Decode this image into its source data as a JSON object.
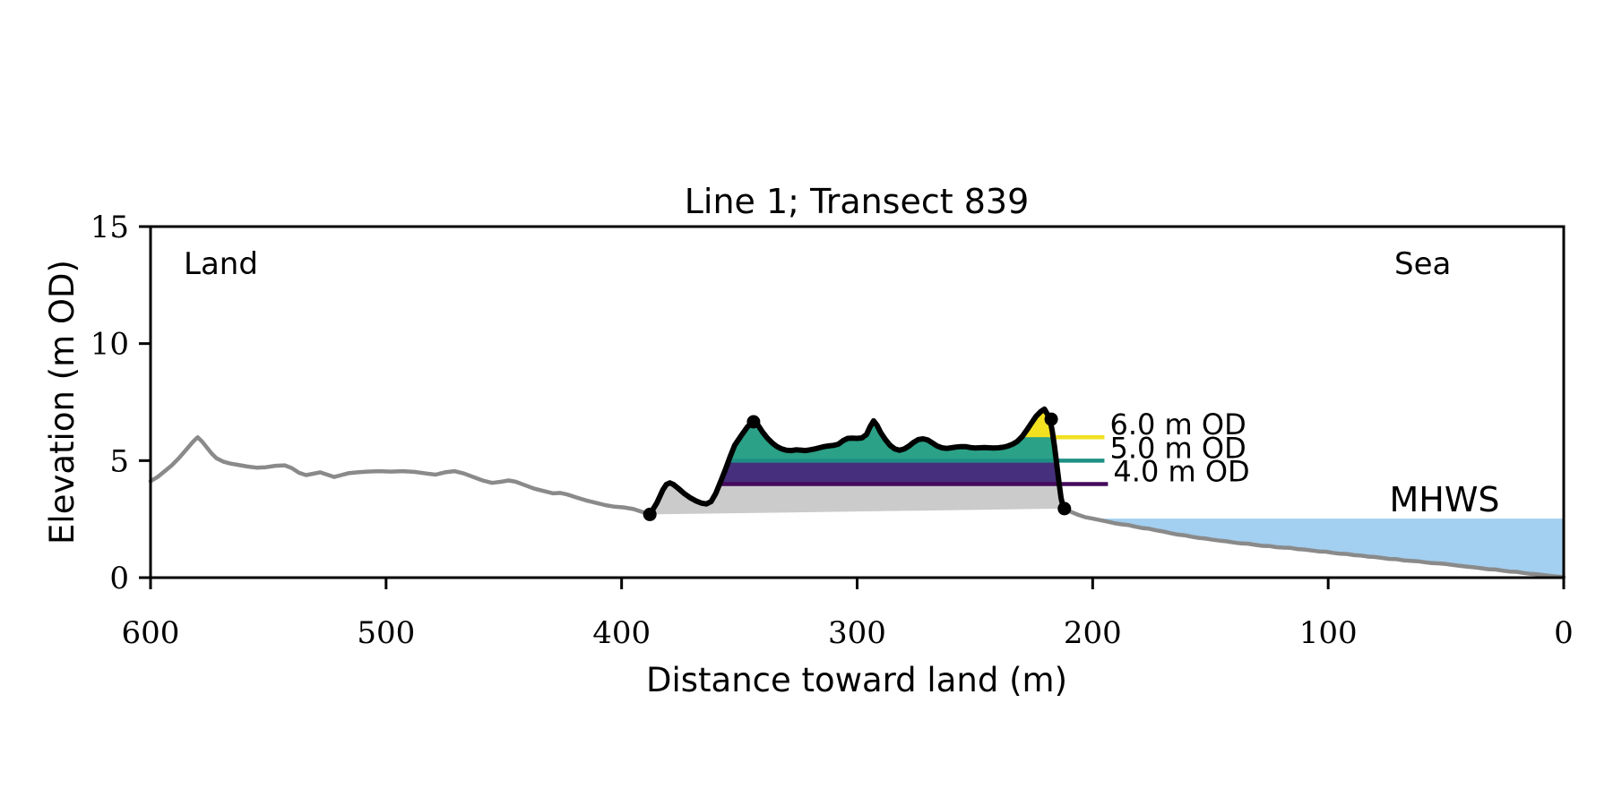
{
  "window": {
    "background": "#ffffff"
  },
  "chart_data": {
    "type": "line",
    "title": "Line 1; Transect 839",
    "xlabel": "Distance toward land (m)",
    "ylabel": "Elevation (m OD)",
    "xlim": [
      600,
      0
    ],
    "ylim": [
      0,
      15
    ],
    "x_axis_reversed": true,
    "x_ticks": [
      600,
      500,
      400,
      300,
      200,
      100,
      0
    ],
    "y_ticks": [
      15,
      10,
      5,
      0
    ],
    "region_labels": {
      "land": "Land",
      "sea": "Sea"
    },
    "mhws": {
      "label": "MHWS",
      "level_m": 2.52,
      "text_color": "#6c9bd2",
      "water_color": "#a3cff0"
    },
    "colors": {
      "profile_gray": "#8a8a8a",
      "dune_outline": "#000000",
      "dune_base_fill": "#cbcbcb",
      "marker": "#000000"
    },
    "series": [
      {
        "name": "land-profile",
        "style": "gray-line",
        "points": [
          [
            600,
            4.12
          ],
          [
            597,
            4.3
          ],
          [
            594,
            4.55
          ],
          [
            591,
            4.8
          ],
          [
            588,
            5.1
          ],
          [
            585,
            5.45
          ],
          [
            582,
            5.8
          ],
          [
            580,
            6.0
          ],
          [
            578,
            5.8
          ],
          [
            576,
            5.55
          ],
          [
            574,
            5.3
          ],
          [
            572,
            5.1
          ],
          [
            569,
            4.95
          ],
          [
            566,
            4.87
          ],
          [
            563,
            4.82
          ],
          [
            559,
            4.75
          ],
          [
            555,
            4.7
          ],
          [
            551,
            4.72
          ],
          [
            547,
            4.78
          ],
          [
            543,
            4.8
          ],
          [
            540,
            4.68
          ],
          [
            537,
            4.48
          ],
          [
            534,
            4.38
          ],
          [
            531,
            4.44
          ],
          [
            528,
            4.5
          ],
          [
            525,
            4.4
          ],
          [
            522,
            4.3
          ],
          [
            519,
            4.38
          ],
          [
            516,
            4.46
          ],
          [
            512,
            4.5
          ],
          [
            508,
            4.53
          ],
          [
            503,
            4.55
          ],
          [
            498,
            4.53
          ],
          [
            493,
            4.55
          ],
          [
            488,
            4.52
          ],
          [
            483,
            4.45
          ],
          [
            479,
            4.4
          ],
          [
            475,
            4.5
          ],
          [
            471,
            4.55
          ],
          [
            467,
            4.45
          ],
          [
            463,
            4.3
          ],
          [
            459,
            4.15
          ],
          [
            455,
            4.05
          ],
          [
            451,
            4.1
          ],
          [
            448,
            4.15
          ],
          [
            445,
            4.1
          ],
          [
            441,
            3.95
          ],
          [
            437,
            3.8
          ],
          [
            433,
            3.7
          ],
          [
            429,
            3.6
          ],
          [
            426,
            3.62
          ],
          [
            423,
            3.55
          ],
          [
            419,
            3.42
          ],
          [
            415,
            3.3
          ],
          [
            411,
            3.2
          ],
          [
            407,
            3.1
          ],
          [
            403,
            3.03
          ],
          [
            399,
            3.0
          ],
          [
            395,
            2.93
          ],
          [
            391,
            2.8
          ],
          [
            388,
            2.7
          ]
        ]
      },
      {
        "name": "dune-highlight",
        "style": "black-line-with-base-fill",
        "points": [
          [
            388,
            2.7
          ],
          [
            385,
            3.2
          ],
          [
            382.5,
            3.75
          ],
          [
            381,
            3.98
          ],
          [
            379.5,
            4.05
          ],
          [
            378,
            3.98
          ],
          [
            376,
            3.82
          ],
          [
            373.5,
            3.6
          ],
          [
            371,
            3.42
          ],
          [
            368.5,
            3.28
          ],
          [
            366,
            3.18
          ],
          [
            364,
            3.15
          ],
          [
            362,
            3.25
          ],
          [
            360,
            3.6
          ],
          [
            358,
            4.1
          ],
          [
            356,
            4.6
          ],
          [
            354,
            5.15
          ],
          [
            352,
            5.65
          ],
          [
            349,
            6.1
          ],
          [
            346.5,
            6.45
          ],
          [
            344,
            6.66
          ],
          [
            342,
            6.5
          ],
          [
            340,
            6.2
          ],
          [
            338,
            5.95
          ],
          [
            336,
            5.75
          ],
          [
            334,
            5.6
          ],
          [
            332,
            5.5
          ],
          [
            330,
            5.44
          ],
          [
            328,
            5.43
          ],
          [
            326,
            5.46
          ],
          [
            324,
            5.45
          ],
          [
            322,
            5.43
          ],
          [
            320,
            5.46
          ],
          [
            318,
            5.5
          ],
          [
            316,
            5.55
          ],
          [
            314,
            5.6
          ],
          [
            312,
            5.63
          ],
          [
            310,
            5.65
          ],
          [
            308,
            5.7
          ],
          [
            306,
            5.85
          ],
          [
            304,
            5.95
          ],
          [
            302,
            5.96
          ],
          [
            300,
            5.95
          ],
          [
            298,
            5.97
          ],
          [
            296,
            6.12
          ],
          [
            294.5,
            6.45
          ],
          [
            293,
            6.7
          ],
          [
            291.5,
            6.5
          ],
          [
            290,
            6.2
          ],
          [
            288,
            5.9
          ],
          [
            286,
            5.65
          ],
          [
            284,
            5.5
          ],
          [
            282,
            5.44
          ],
          [
            280,
            5.5
          ],
          [
            278,
            5.62
          ],
          [
            276,
            5.78
          ],
          [
            274,
            5.9
          ],
          [
            272,
            5.93
          ],
          [
            270,
            5.88
          ],
          [
            268,
            5.75
          ],
          [
            266,
            5.62
          ],
          [
            264,
            5.55
          ],
          [
            262,
            5.52
          ],
          [
            260,
            5.55
          ],
          [
            258,
            5.58
          ],
          [
            256,
            5.6
          ],
          [
            254,
            5.6
          ],
          [
            252,
            5.56
          ],
          [
            250,
            5.54
          ],
          [
            248,
            5.55
          ],
          [
            246,
            5.56
          ],
          [
            244,
            5.55
          ],
          [
            242,
            5.54
          ],
          [
            240,
            5.55
          ],
          [
            238,
            5.57
          ],
          [
            236,
            5.62
          ],
          [
            234,
            5.7
          ],
          [
            232,
            5.82
          ],
          [
            230,
            6.02
          ],
          [
            228,
            6.3
          ],
          [
            226,
            6.6
          ],
          [
            224,
            6.9
          ],
          [
            222,
            7.1
          ],
          [
            220.5,
            7.2
          ],
          [
            219.3,
            7.0
          ],
          [
            218.2,
            6.78
          ],
          [
            217.2,
            6.3
          ],
          [
            216.2,
            5.6
          ],
          [
            215.2,
            4.8
          ],
          [
            214.2,
            4.0
          ],
          [
            213.4,
            3.4
          ],
          [
            212.6,
            3.05
          ],
          [
            212,
            2.95
          ]
        ]
      },
      {
        "name": "sea-profile",
        "style": "gray-line",
        "points": [
          [
            212,
            2.95
          ],
          [
            209,
            2.8
          ],
          [
            206,
            2.68
          ],
          [
            203,
            2.58
          ],
          [
            200,
            2.52
          ],
          [
            197,
            2.46
          ],
          [
            194,
            2.4
          ],
          [
            191,
            2.33
          ],
          [
            188,
            2.28
          ],
          [
            185,
            2.25
          ],
          [
            182,
            2.18
          ],
          [
            179,
            2.12
          ],
          [
            176,
            2.09
          ],
          [
            173,
            2.02
          ],
          [
            170,
            1.97
          ],
          [
            167,
            1.9
          ],
          [
            164,
            1.84
          ],
          [
            161,
            1.81
          ],
          [
            158,
            1.75
          ],
          [
            155,
            1.7
          ],
          [
            152,
            1.67
          ],
          [
            149,
            1.62
          ],
          [
            146,
            1.58
          ],
          [
            143,
            1.55
          ],
          [
            140,
            1.5
          ],
          [
            137,
            1.46
          ],
          [
            134,
            1.45
          ],
          [
            131,
            1.4
          ],
          [
            128,
            1.36
          ],
          [
            125,
            1.35
          ],
          [
            122,
            1.3
          ],
          [
            119,
            1.28
          ],
          [
            116,
            1.27
          ],
          [
            113,
            1.22
          ],
          [
            110,
            1.2
          ],
          [
            107,
            1.16
          ],
          [
            104,
            1.12
          ],
          [
            101,
            1.11
          ],
          [
            98,
            1.06
          ],
          [
            95,
            1.02
          ],
          [
            92,
            1.01
          ],
          [
            89,
            0.96
          ],
          [
            86,
            0.94
          ],
          [
            83,
            0.9
          ],
          [
            80,
            0.88
          ],
          [
            77,
            0.84
          ],
          [
            74,
            0.8
          ],
          [
            71,
            0.79
          ],
          [
            68,
            0.74
          ],
          [
            65,
            0.72
          ],
          [
            62,
            0.7
          ],
          [
            59,
            0.66
          ],
          [
            56,
            0.62
          ],
          [
            53,
            0.61
          ],
          [
            50,
            0.58
          ],
          [
            47,
            0.54
          ],
          [
            44,
            0.5
          ],
          [
            41,
            0.47
          ],
          [
            38,
            0.44
          ],
          [
            35,
            0.4
          ],
          [
            32,
            0.36
          ],
          [
            29,
            0.35
          ],
          [
            26,
            0.3
          ],
          [
            23,
            0.26
          ],
          [
            20,
            0.25
          ],
          [
            17,
            0.2
          ],
          [
            14,
            0.16
          ],
          [
            11,
            0.14
          ],
          [
            8,
            0.1
          ],
          [
            5,
            0.07
          ],
          [
            2,
            0.04
          ],
          [
            0,
            0.02
          ]
        ]
      }
    ],
    "markers": {
      "points": [
        [
          388,
          2.7
        ],
        [
          344,
          6.66
        ],
        [
          217.6,
          6.77
        ],
        [
          212,
          2.95
        ]
      ]
    },
    "contours": [
      {
        "level_m": 4.0,
        "label": "4.0 m OD",
        "fill": "#462f7c",
        "line_color": "#450a5c",
        "band_top_m": 5.0,
        "band_d_from": 358.5,
        "band_d_to": 205,
        "line_d_from": 358.5,
        "line_d_to": 193.5
      },
      {
        "level_m": 5.0,
        "label": "5.0 m OD",
        "fill": "#2ba187",
        "line_color": "#1e8f84",
        "band_top_m": 7.5,
        "band_d_from": 354.5,
        "band_d_to": 205,
        "line_d_from": 354.5,
        "line_d_to": 195
      },
      {
        "level_m": 6.0,
        "label": "6.0 m OD",
        "fill": "#f2e021",
        "line_color": "#f2e021",
        "band_top_m": 7.5,
        "band_d_from": 231.7,
        "band_d_to": 205,
        "line_d_from": 216,
        "line_d_to": 195
      }
    ]
  }
}
